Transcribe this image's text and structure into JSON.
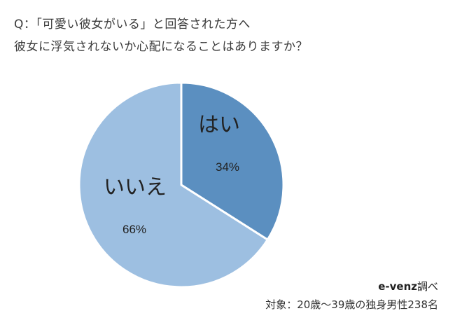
{
  "question": {
    "line1": "Q：「可愛い彼女がいる」と回答された方へ",
    "line2": "彼女に浮気されないか心配になることはありますか？"
  },
  "source": {
    "brand": "e-venz",
    "suffix": "調べ",
    "target": "対象：20歳〜39歳の独身男性238名"
  },
  "chart_data": {
    "type": "pie",
    "slices": [
      {
        "label": "はい",
        "value": 34,
        "value_label": "34%",
        "color": "#5b8fc0"
      },
      {
        "label": "いいえ",
        "value": 66,
        "value_label": "66%",
        "color": "#9dbfe1"
      }
    ],
    "start": "top",
    "direction": "clockwise"
  }
}
